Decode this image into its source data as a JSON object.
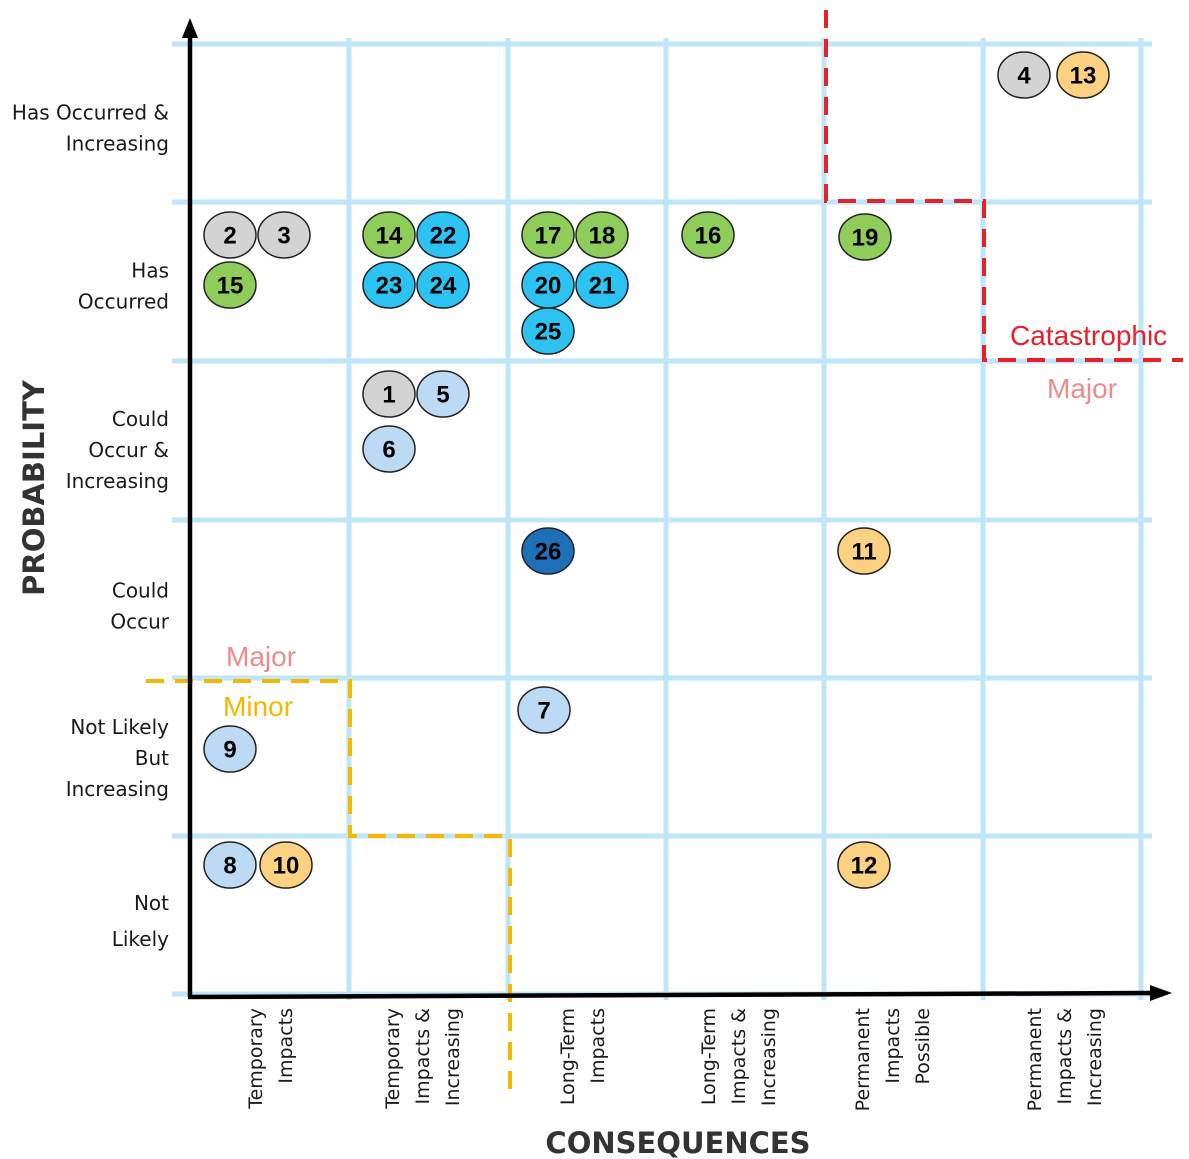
{
  "axes": {
    "y_title": "PROBABILITY",
    "x_title": "CONSEQUENCES"
  },
  "rows": [
    {
      "lines": [
        "Has Occurred &",
        "Increasing"
      ]
    },
    {
      "lines": [
        "Has",
        "Occurred"
      ]
    },
    {
      "lines": [
        "Could",
        "Occur &",
        "Increasing"
      ]
    },
    {
      "lines": [
        "Could",
        "Occur"
      ]
    },
    {
      "lines": [
        "Not Likely",
        "But",
        "Increasing"
      ]
    },
    {
      "lines": [
        "Not",
        "Likely"
      ]
    }
  ],
  "columns": [
    {
      "lines": [
        "Temporary",
        "Impacts"
      ]
    },
    {
      "lines": [
        "Temporary",
        "Impacts &",
        "Increasing"
      ]
    },
    {
      "lines": [
        "Long-Term",
        "Impacts"
      ]
    },
    {
      "lines": [
        "Long-Term",
        "Impacts &",
        "Increasing"
      ]
    },
    {
      "lines": [
        "Permanent",
        "Impacts",
        "Possible"
      ]
    },
    {
      "lines": [
        "Permanent",
        "Impacts &",
        "Increasing"
      ]
    }
  ],
  "zones": {
    "catastrophic": {
      "label": "Catastrophic",
      "color": "#e8202a"
    },
    "major_upper": {
      "label": "Major",
      "color": "#f08a8a"
    },
    "major_lower": {
      "label": "Major",
      "color": "#f08a8a"
    },
    "minor": {
      "label": "Minor",
      "color": "#f5b800"
    }
  },
  "colors": {
    "gray": "#d3d3d3",
    "orange": "#fdd182",
    "green": "#8fcd5a",
    "cyan": "#2cc3f2",
    "lightblue": "#bcdaf3",
    "darkblue": "#1d6fb8"
  },
  "markers": [
    {
      "id": "4",
      "consequence": "Permanent Impacts & Increasing",
      "probability": "Has Occurred & Increasing",
      "color": "gray"
    },
    {
      "id": "13",
      "consequence": "Permanent Impacts & Increasing",
      "probability": "Has Occurred & Increasing",
      "color": "orange"
    },
    {
      "id": "2",
      "consequence": "Temporary Impacts",
      "probability": "Has Occurred",
      "color": "gray"
    },
    {
      "id": "3",
      "consequence": "Temporary Impacts",
      "probability": "Has Occurred",
      "color": "gray"
    },
    {
      "id": "15",
      "consequence": "Temporary Impacts",
      "probability": "Has Occurred",
      "color": "green"
    },
    {
      "id": "14",
      "consequence": "Temporary Impacts & Increasing",
      "probability": "Has Occurred",
      "color": "green"
    },
    {
      "id": "22",
      "consequence": "Temporary Impacts & Increasing",
      "probability": "Has Occurred",
      "color": "cyan"
    },
    {
      "id": "23",
      "consequence": "Temporary Impacts & Increasing",
      "probability": "Has Occurred",
      "color": "cyan"
    },
    {
      "id": "24",
      "consequence": "Temporary Impacts & Increasing",
      "probability": "Has Occurred",
      "color": "cyan"
    },
    {
      "id": "17",
      "consequence": "Long-Term Impacts",
      "probability": "Has Occurred",
      "color": "green"
    },
    {
      "id": "18",
      "consequence": "Long-Term Impacts",
      "probability": "Has Occurred",
      "color": "green"
    },
    {
      "id": "20",
      "consequence": "Long-Term Impacts",
      "probability": "Has Occurred",
      "color": "cyan"
    },
    {
      "id": "21",
      "consequence": "Long-Term Impacts",
      "probability": "Has Occurred",
      "color": "cyan"
    },
    {
      "id": "25",
      "consequence": "Long-Term Impacts",
      "probability": "Has Occurred",
      "color": "cyan"
    },
    {
      "id": "16",
      "consequence": "Long-Term Impacts & Increasing",
      "probability": "Has Occurred",
      "color": "green"
    },
    {
      "id": "19",
      "consequence": "Permanent Impacts Possible",
      "probability": "Has Occurred",
      "color": "green"
    },
    {
      "id": "1",
      "consequence": "Temporary Impacts & Increasing",
      "probability": "Could Occur & Increasing",
      "color": "gray"
    },
    {
      "id": "5",
      "consequence": "Temporary Impacts & Increasing",
      "probability": "Could Occur & Increasing",
      "color": "lightblue"
    },
    {
      "id": "6",
      "consequence": "Temporary Impacts & Increasing",
      "probability": "Could Occur & Increasing",
      "color": "lightblue"
    },
    {
      "id": "26",
      "consequence": "Long-Term Impacts",
      "probability": "Could Occur",
      "color": "darkblue"
    },
    {
      "id": "11",
      "consequence": "Permanent Impacts Possible",
      "probability": "Could Occur",
      "color": "orange"
    },
    {
      "id": "7",
      "consequence": "Long-Term Impacts",
      "probability": "Not Likely But Increasing",
      "color": "lightblue"
    },
    {
      "id": "9",
      "consequence": "Temporary Impacts",
      "probability": "Not Likely But Increasing",
      "color": "lightblue"
    },
    {
      "id": "8",
      "consequence": "Temporary Impacts",
      "probability": "Not Likely",
      "color": "lightblue"
    },
    {
      "id": "10",
      "consequence": "Temporary Impacts",
      "probability": "Not Likely",
      "color": "orange"
    },
    {
      "id": "12",
      "consequence": "Permanent Impacts Possible",
      "probability": "Not Likely",
      "color": "orange"
    }
  ]
}
